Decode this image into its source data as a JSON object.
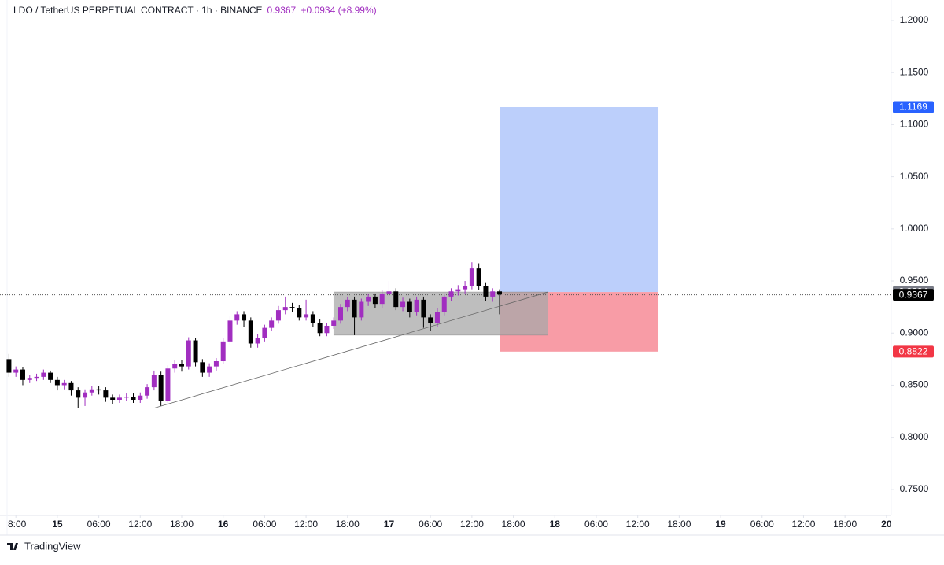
{
  "chart_data": {
    "type": "candlestick",
    "title": "LDO / TetherUS PERPETUAL CONTRACT · 1h · BINANCE",
    "last_price": 0.9367,
    "change": "+0.0934 (+8.99%)",
    "brand": "TradingView",
    "up_color": "#a12ec0",
    "down_color": "#000000",
    "x": [
      -7,
      -6,
      -5,
      -4,
      -3,
      -2,
      -1,
      0,
      1,
      2,
      3,
      4,
      5,
      6,
      7,
      8,
      9,
      10,
      11,
      12,
      13,
      14,
      15,
      16,
      17,
      18,
      19,
      20,
      21,
      22,
      23,
      24,
      25,
      26,
      27,
      28,
      29,
      30,
      31,
      32,
      33,
      34,
      35,
      36,
      37,
      38,
      39,
      40,
      41,
      42,
      43,
      44,
      45,
      46,
      47,
      48,
      49,
      50,
      51,
      52,
      53,
      54,
      55,
      56,
      57,
      58,
      59,
      60,
      61,
      62,
      63,
      64
    ],
    "open": [
      0.875,
      0.862,
      0.865,
      0.855,
      0.857,
      0.858,
      0.862,
      0.855,
      0.85,
      0.852,
      0.845,
      0.838,
      0.843,
      0.846,
      0.845,
      0.838,
      0.836,
      0.838,
      0.839,
      0.836,
      0.84,
      0.848,
      0.86,
      0.835,
      0.866,
      0.87,
      0.868,
      0.893,
      0.872,
      0.862,
      0.868,
      0.873,
      0.892,
      0.912,
      0.918,
      0.912,
      0.89,
      0.895,
      0.905,
      0.912,
      0.922,
      0.925,
      0.924,
      0.915,
      0.918,
      0.91,
      0.9,
      0.907,
      0.912,
      0.925,
      0.932,
      0.915,
      0.93,
      0.935,
      0.928,
      0.938,
      0.94,
      0.925,
      0.93,
      0.92,
      0.932,
      0.915,
      0.91,
      0.92,
      0.935,
      0.94,
      0.942,
      0.945,
      0.962,
      0.945,
      0.935,
      0.94
    ],
    "high": [
      0.88,
      0.868,
      0.867,
      0.86,
      0.861,
      0.865,
      0.864,
      0.858,
      0.855,
      0.854,
      0.848,
      0.846,
      0.849,
      0.849,
      0.848,
      0.841,
      0.841,
      0.842,
      0.842,
      0.843,
      0.851,
      0.864,
      0.863,
      0.869,
      0.874,
      0.874,
      0.896,
      0.895,
      0.875,
      0.871,
      0.876,
      0.895,
      0.916,
      0.921,
      0.921,
      0.915,
      0.899,
      0.908,
      0.915,
      0.926,
      0.935,
      0.929,
      0.927,
      0.932,
      0.921,
      0.913,
      0.91,
      0.915,
      0.928,
      0.935,
      0.935,
      0.933,
      0.938,
      0.938,
      0.941,
      0.95,
      0.943,
      0.934,
      0.933,
      0.935,
      0.935,
      0.918,
      0.924,
      0.938,
      0.943,
      0.946,
      0.95,
      0.968,
      0.967,
      0.948,
      0.943,
      0.942
    ],
    "low": [
      0.858,
      0.858,
      0.85,
      0.852,
      0.854,
      0.855,
      0.852,
      0.845,
      0.846,
      0.84,
      0.828,
      0.83,
      0.84,
      0.841,
      0.834,
      0.832,
      0.833,
      0.835,
      0.833,
      0.833,
      0.837,
      0.845,
      0.83,
      0.832,
      0.862,
      0.863,
      0.865,
      0.868,
      0.858,
      0.858,
      0.864,
      0.87,
      0.889,
      0.908,
      0.906,
      0.886,
      0.886,
      0.892,
      0.902,
      0.909,
      0.918,
      0.92,
      0.912,
      0.912,
      0.906,
      0.897,
      0.897,
      0.904,
      0.909,
      0.921,
      0.898,
      0.912,
      0.926,
      0.924,
      0.924,
      0.934,
      0.922,
      0.921,
      0.915,
      0.917,
      0.905,
      0.902,
      0.906,
      0.917,
      0.931,
      0.936,
      0.938,
      0.942,
      0.941,
      0.931,
      0.93,
      0.918
    ],
    "close": [
      0.862,
      0.865,
      0.855,
      0.857,
      0.858,
      0.862,
      0.855,
      0.85,
      0.852,
      0.845,
      0.838,
      0.843,
      0.846,
      0.845,
      0.838,
      0.836,
      0.838,
      0.839,
      0.836,
      0.84,
      0.848,
      0.86,
      0.835,
      0.866,
      0.87,
      0.868,
      0.893,
      0.872,
      0.862,
      0.868,
      0.873,
      0.892,
      0.912,
      0.918,
      0.912,
      0.89,
      0.895,
      0.905,
      0.912,
      0.922,
      0.925,
      0.924,
      0.915,
      0.918,
      0.91,
      0.9,
      0.907,
      0.912,
      0.925,
      0.932,
      0.915,
      0.93,
      0.935,
      0.928,
      0.938,
      0.94,
      0.925,
      0.93,
      0.92,
      0.932,
      0.915,
      0.91,
      0.92,
      0.935,
      0.94,
      0.942,
      0.945,
      0.962,
      0.945,
      0.935,
      0.94,
      0.937
    ],
    "xlim": [
      -8.3,
      120.7
    ],
    "ylim": [
      0.725,
      1.2196
    ],
    "xticks": [
      {
        "value": -6,
        "label": "8:00"
      },
      {
        "value": 0,
        "label": "15"
      },
      {
        "value": 6,
        "label": "06:00"
      },
      {
        "value": 12,
        "label": "12:00"
      },
      {
        "value": 18,
        "label": "18:00"
      },
      {
        "value": 24,
        "label": "16"
      },
      {
        "value": 30,
        "label": "06:00"
      },
      {
        "value": 36,
        "label": "12:00"
      },
      {
        "value": 42,
        "label": "18:00"
      },
      {
        "value": 48,
        "label": "17"
      },
      {
        "value": 54,
        "label": "06:00"
      },
      {
        "value": 60,
        "label": "12:00"
      },
      {
        "value": 66,
        "label": "18:00"
      },
      {
        "value": 72,
        "label": "18"
      },
      {
        "value": 78,
        "label": "06:00"
      },
      {
        "value": 84,
        "label": "12:00"
      },
      {
        "value": 90,
        "label": "18:00"
      },
      {
        "value": 96,
        "label": "19"
      },
      {
        "value": 102,
        "label": "06:00"
      },
      {
        "value": 108,
        "label": "12:00"
      },
      {
        "value": 114,
        "label": "18:00"
      },
      {
        "value": 120,
        "label": "20"
      }
    ],
    "yticks": [
      {
        "value": 0.75,
        "label": "0.7500"
      },
      {
        "value": 0.8,
        "label": "0.8000"
      },
      {
        "value": 0.85,
        "label": "0.8500"
      },
      {
        "value": 0.9,
        "label": "0.9000"
      },
      {
        "value": 0.95,
        "label": "0.9500"
      },
      {
        "value": 1.0,
        "label": "1.0000"
      },
      {
        "value": 1.05,
        "label": "1.0500"
      },
      {
        "value": 1.1,
        "label": "1.1000"
      },
      {
        "value": 1.15,
        "label": "1.1500"
      },
      {
        "value": 1.2,
        "label": "1.2000"
      }
    ],
    "position": {
      "x": [
        64,
        87
      ],
      "entry": 0.9394,
      "target": 1.1169,
      "stop": 0.8822,
      "target_color": "#bccffb",
      "stop_color": "#f89ca6"
    },
    "range_box": {
      "x": [
        40,
        71
      ],
      "y": [
        0.898,
        0.9394
      ],
      "color": "#a8a8a8"
    },
    "trendline": {
      "x": [
        14,
        71
      ],
      "y": [
        0.828,
        0.9394
      ]
    }
  }
}
